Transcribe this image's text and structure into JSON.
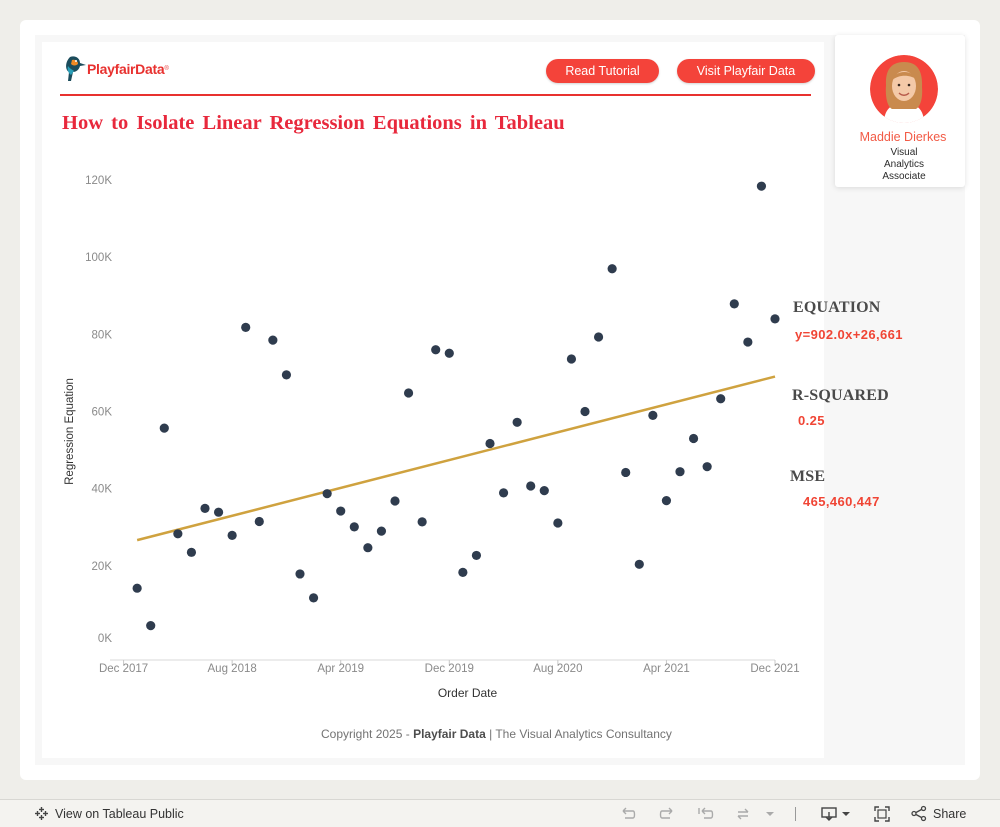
{
  "header": {
    "logo_text": "PlayfairData",
    "logo_reg": "®",
    "read_tutorial_label": "Read Tutorial",
    "visit_label": "Visit Playfair Data",
    "title": "How to Isolate Linear Regression Equations in Tableau"
  },
  "profile": {
    "name": "Maddie Dierkes",
    "role": "Visual Analytics Associate"
  },
  "stats": {
    "equation_label": "EQUATION",
    "equation_value": "y=902.0x+26,661",
    "rsquared_label": "R-SQUARED",
    "rsquared_value": "0.25",
    "mse_label": "MSE",
    "mse_value": "465,460,447"
  },
  "footer": {
    "copyright_prefix": "Copyright 2025 -",
    "copyright_brand": "Playfair Data",
    "copyright_suffix": "| The Visual Analytics Consultancy"
  },
  "toolbar": {
    "view_label": "View on Tableau Public",
    "share_label": "Share"
  },
  "colors": {
    "brand_red": "#e8312f",
    "point": "#2f3c4e",
    "trend": "#cfa23f"
  },
  "chart_data": {
    "type": "scatter",
    "xlabel": "Order Date",
    "ylabel": "Regression Equation",
    "x_unit": "months",
    "xlim": [
      "2017-11",
      "2021-12"
    ],
    "ylim": [
      0,
      120000
    ],
    "x_ticks": [
      {
        "label": "Dec 2017",
        "date": "2017-12"
      },
      {
        "label": "Aug 2018",
        "date": "2018-08"
      },
      {
        "label": "Apr 2019",
        "date": "2019-04"
      },
      {
        "label": "Dec 2019",
        "date": "2019-12"
      },
      {
        "label": "Aug 2020",
        "date": "2020-08"
      },
      {
        "label": "Apr 2021",
        "date": "2021-04"
      },
      {
        "label": "Dec 2021",
        "date": "2021-12"
      }
    ],
    "y_ticks": [
      {
        "label": "0K",
        "value": 0
      },
      {
        "label": "20K",
        "value": 20000
      },
      {
        "label": "40K",
        "value": 40000
      },
      {
        "label": "60K",
        "value": 60000
      },
      {
        "label": "80K",
        "value": 80000
      },
      {
        "label": "100K",
        "value": 100000
      },
      {
        "label": "120K",
        "value": 120000
      }
    ],
    "grid": false,
    "points": [
      {
        "x": "2018-01",
        "y": 14200
      },
      {
        "x": "2018-02",
        "y": 4500
      },
      {
        "x": "2018-03",
        "y": 55700
      },
      {
        "x": "2018-04",
        "y": 28300
      },
      {
        "x": "2018-05",
        "y": 23500
      },
      {
        "x": "2018-06",
        "y": 34900
      },
      {
        "x": "2018-07",
        "y": 33900
      },
      {
        "x": "2018-08",
        "y": 27900
      },
      {
        "x": "2018-09",
        "y": 81800
      },
      {
        "x": "2018-10",
        "y": 31500
      },
      {
        "x": "2018-11",
        "y": 78500
      },
      {
        "x": "2018-12",
        "y": 69500
      },
      {
        "x": "2019-01",
        "y": 17900
      },
      {
        "x": "2019-02",
        "y": 11700
      },
      {
        "x": "2019-03",
        "y": 38700
      },
      {
        "x": "2019-04",
        "y": 34200
      },
      {
        "x": "2019-05",
        "y": 30100
      },
      {
        "x": "2019-06",
        "y": 24700
      },
      {
        "x": "2019-07",
        "y": 29000
      },
      {
        "x": "2019-08",
        "y": 36800
      },
      {
        "x": "2019-09",
        "y": 64800
      },
      {
        "x": "2019-10",
        "y": 31400
      },
      {
        "x": "2019-11",
        "y": 76000
      },
      {
        "x": "2019-12",
        "y": 75100
      },
      {
        "x": "2020-01",
        "y": 18300
      },
      {
        "x": "2020-02",
        "y": 22700
      },
      {
        "x": "2020-03",
        "y": 51700
      },
      {
        "x": "2020-04",
        "y": 38900
      },
      {
        "x": "2020-05",
        "y": 57200
      },
      {
        "x": "2020-06",
        "y": 40700
      },
      {
        "x": "2020-07",
        "y": 39500
      },
      {
        "x": "2020-08",
        "y": 31100
      },
      {
        "x": "2020-09",
        "y": 73600
      },
      {
        "x": "2020-10",
        "y": 60000
      },
      {
        "x": "2020-11",
        "y": 79300
      },
      {
        "x": "2020-12",
        "y": 97000
      },
      {
        "x": "2021-01",
        "y": 44200
      },
      {
        "x": "2021-02",
        "y": 20400
      },
      {
        "x": "2021-03",
        "y": 59000
      },
      {
        "x": "2021-04",
        "y": 36900
      },
      {
        "x": "2021-05",
        "y": 44400
      },
      {
        "x": "2021-06",
        "y": 53000
      },
      {
        "x": "2021-07",
        "y": 45700
      },
      {
        "x": "2021-08",
        "y": 63300
      },
      {
        "x": "2021-09",
        "y": 87900
      },
      {
        "x": "2021-10",
        "y": 78000
      },
      {
        "x": "2021-11",
        "y": 118400
      },
      {
        "x": "2021-12",
        "y": 84000
      }
    ],
    "trend_line": {
      "x": [
        "2018-01",
        "2021-12"
      ],
      "y": [
        26661,
        69057
      ]
    }
  }
}
